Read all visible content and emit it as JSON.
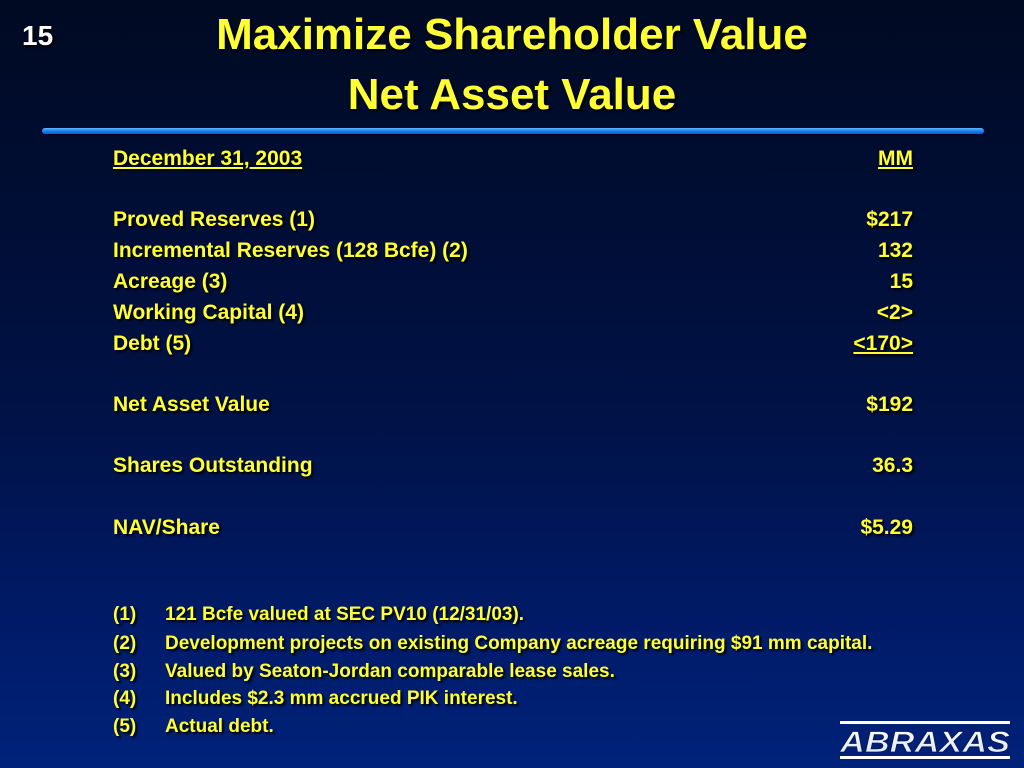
{
  "slide_number": "15",
  "title": {
    "line1": "Maximize Shareholder Value",
    "line2": "Net Asset Value"
  },
  "table": {
    "header": {
      "label": "December 31, 2003",
      "unit": "MM"
    },
    "items": [
      {
        "label": "Proved Reserves (1)",
        "value": "$217"
      },
      {
        "label": "Incremental Reserves (128 Bcfe) (2)",
        "value": "132"
      },
      {
        "label": "Acreage (3)",
        "value": "15"
      },
      {
        "label": "Working Capital (4)",
        "value": "<2>"
      },
      {
        "label": "Debt (5)",
        "value": "<170>"
      }
    ],
    "net_asset_value": {
      "label": "Net Asset Value",
      "value": "$192"
    },
    "shares_outstanding": {
      "label": "Shares Outstanding",
      "value": "36.3"
    },
    "nav_per_share": {
      "label": "NAV/Share",
      "value": "$5.29"
    }
  },
  "footnotes": [
    {
      "num": "(1)",
      "text": "121 Bcfe valued at SEC PV10 (12/31/03)."
    },
    {
      "num": "(2)",
      "text": "Development projects on existing Company acreage requiring $91 mm capital."
    },
    {
      "num": "(3)",
      "text": "Valued by Seaton-Jordan comparable lease sales."
    },
    {
      "num": "(4)",
      "text": "Includes $2.3 mm accrued PIK interest."
    },
    {
      "num": "(5)",
      "text": "Actual debt."
    }
  ],
  "logo": {
    "text": "ABRAXAS"
  },
  "colors": {
    "text": "#ffff33",
    "background_top": "#000a22",
    "background_bottom": "#00227a",
    "rule": "#1a82f0",
    "slide_number": "#ffffff"
  }
}
